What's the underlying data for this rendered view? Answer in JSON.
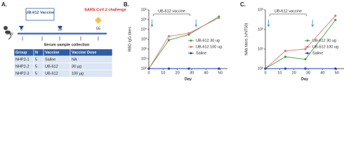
{
  "panel_a": {
    "label": "A.",
    "day_label": "Day",
    "days": [
      "0",
      "28",
      "55"
    ],
    "vaccine": "UB-612 Vaccine",
    "challenge": "SARS-CoV-2 challenge",
    "collection": "Serum sample collection",
    "table": {
      "header": [
        "Group",
        "N",
        "Vaccine",
        "Vaccine Dose"
      ],
      "rows": [
        [
          "NHP2-1",
          "5",
          "Saline",
          "NA"
        ],
        [
          "NHP2-2",
          "5",
          "UB-612",
          "30 µg"
        ],
        [
          "NHP2-3",
          "5",
          "UB-612",
          "100 µg"
        ]
      ]
    }
  },
  "chart_data": [
    {
      "type": "line",
      "label": "B.",
      "y_label": "RBD IgG titers",
      "x_label": "Day",
      "annotation": "UB-612 vaccine",
      "log_y": true,
      "x": [
        0,
        14,
        28,
        49
      ],
      "series": [
        {
          "name": "UB-612 30 ug",
          "color": "#43a047",
          "values": [
            1,
            800,
            3000,
            200000
          ]
        },
        {
          "name": "UB-612 100 ug",
          "color": "#e57373",
          "values": [
            1,
            2000,
            4000,
            150000
          ]
        },
        {
          "name": "Saline",
          "color": "#1a3cc4",
          "values": [
            1,
            1,
            1,
            1
          ]
        }
      ],
      "xlim": [
        0,
        55
      ],
      "xticks": [
        0,
        10,
        20,
        30,
        40,
        50
      ],
      "ylim": [
        1,
        1000000
      ],
      "yticks": [
        {
          "value": 1,
          "label": "10⁰"
        },
        {
          "value": 10,
          "label": "10¹"
        },
        {
          "value": 100,
          "label": "10²"
        },
        {
          "value": 1000,
          "label": "10³"
        },
        {
          "value": 10000,
          "label": "10⁴"
        },
        {
          "value": 100000,
          "label": "10⁵"
        },
        {
          "value": 1000000,
          "label": "10⁶"
        }
      ]
    },
    {
      "type": "line",
      "label": "C.",
      "y_label": "NAb titers (VNT50)",
      "x_label": "Day",
      "annotation": "UB-612 vaccine",
      "log_y": true,
      "x": [
        0,
        14,
        28,
        49
      ],
      "series": [
        {
          "name": "UB-612 30 ug",
          "color": "#43a047",
          "values": [
            1,
            4,
            3,
            300
          ]
        },
        {
          "name": "UB-612 100 ug",
          "color": "#e57373",
          "values": [
            1,
            8,
            10,
            500
          ]
        },
        {
          "name": "Saline",
          "color": "#1a3cc4",
          "values": [
            1,
            1,
            1,
            1
          ]
        }
      ],
      "xlim": [
        0,
        55
      ],
      "xticks": [
        0,
        10,
        20,
        30,
        40,
        50
      ],
      "ylim": [
        1,
        1000
      ],
      "yticks": [
        {
          "value": 1,
          "label": "10⁰"
        },
        {
          "value": 10,
          "label": "10¹"
        },
        {
          "value": 100,
          "label": "10²"
        },
        {
          "value": 1000,
          "label": "10³"
        }
      ]
    }
  ]
}
